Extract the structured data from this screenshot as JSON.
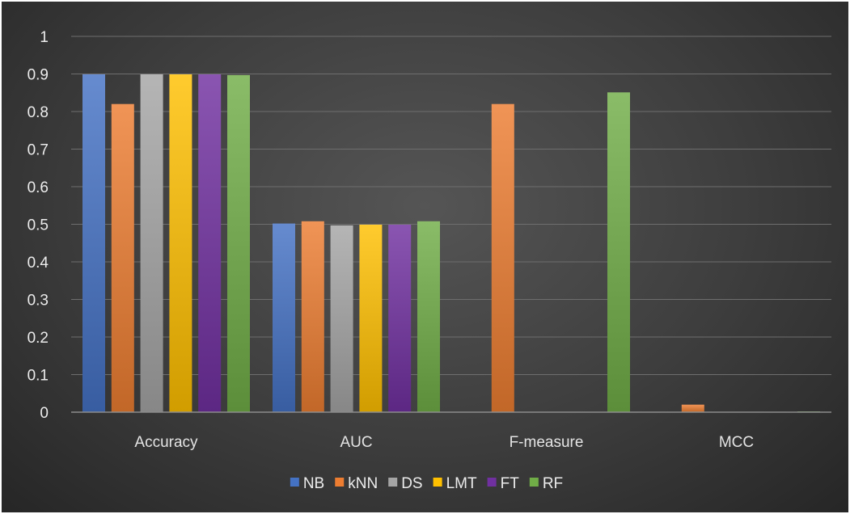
{
  "chart_data": {
    "type": "bar",
    "title": "",
    "xlabel": "",
    "ylabel": "",
    "categories": [
      "Accuracy",
      "AUC",
      "F-measure",
      "MCC"
    ],
    "ylim": [
      0,
      1
    ],
    "yticks": [
      "0",
      "0.1",
      "0.2",
      "0.3",
      "0.4",
      "0.5",
      "0.6",
      "0.7",
      "0.8",
      "0.9",
      "1"
    ],
    "grid": true,
    "legend_position": "bottom",
    "series": [
      {
        "name": "NB",
        "color": "#4472c4",
        "values": [
          0.899,
          0.502,
          0,
          0
        ]
      },
      {
        "name": "kNN",
        "color": "#ed7d31",
        "values": [
          0.82,
          0.508,
          0.82,
          0.02
        ]
      },
      {
        "name": "DS",
        "color": "#a5a5a5",
        "values": [
          0.899,
          0.497,
          0,
          0
        ]
      },
      {
        "name": "LMT",
        "color": "#ffc000",
        "values": [
          0.899,
          0.499,
          0,
          0
        ]
      },
      {
        "name": "FT",
        "color": "#7030a0",
        "values": [
          0.899,
          0.499,
          0,
          0
        ]
      },
      {
        "name": "RF",
        "color": "#70ad47",
        "values": [
          0.897,
          0.508,
          0.851,
          0.002
        ]
      }
    ]
  }
}
